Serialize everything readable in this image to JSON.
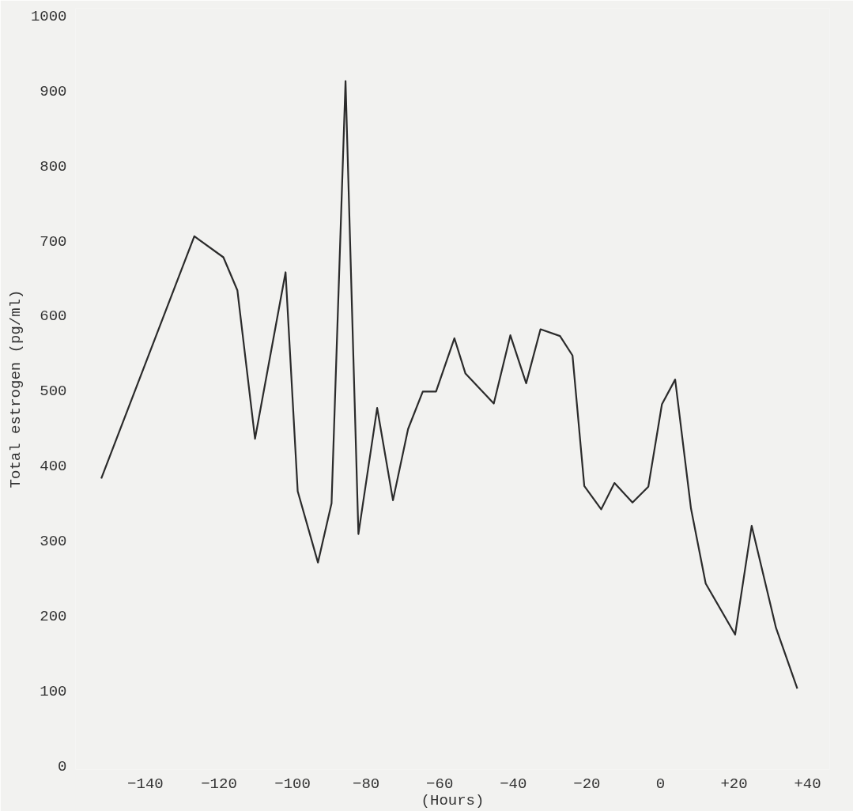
{
  "chart_data": {
    "type": "line",
    "xlabel": "(Hours)",
    "ylabel": "Total estrogen (pg/ml)",
    "xlim": [
      -159,
      46
    ],
    "ylim": [
      -5,
      1010
    ],
    "xticks": [
      -140,
      -120,
      -100,
      -80,
      -60,
      -40,
      -20,
      0,
      {
        "value": 20,
        "label": "+20"
      },
      {
        "value": 40,
        "label": "+40"
      }
    ],
    "yticks": [
      0,
      100,
      200,
      300,
      400,
      500,
      600,
      700,
      800,
      900,
      1000
    ],
    "grid": false,
    "series": [
      {
        "color": "#2b2b2b",
        "x": [
          -152,
          -126.7,
          -118.8,
          -115,
          -110.2,
          -101.9,
          -98.6,
          -93.1,
          -89.4,
          -85.6,
          -82.1,
          -77,
          -72.7,
          -68.6,
          -64.6,
          -61,
          -56,
          -53,
          -45.3,
          -40.8,
          -36.5,
          -32.6,
          -27.3,
          -23.9,
          -20.7,
          -16.1,
          -12.5,
          -7.6,
          -3.3,
          0.4,
          4,
          8.3,
          12.3,
          20.3,
          24.8,
          31.4,
          37.2
        ],
        "values": [
          383,
          706,
          678,
          634,
          436,
          658,
          366,
          271,
          350,
          913,
          309,
          477,
          354,
          449,
          499,
          499,
          570,
          523,
          483,
          574,
          510,
          582,
          573,
          547,
          373,
          342,
          377,
          351,
          372,
          482,
          515,
          343,
          243,
          175,
          320,
          184,
          103
        ]
      }
    ]
  }
}
